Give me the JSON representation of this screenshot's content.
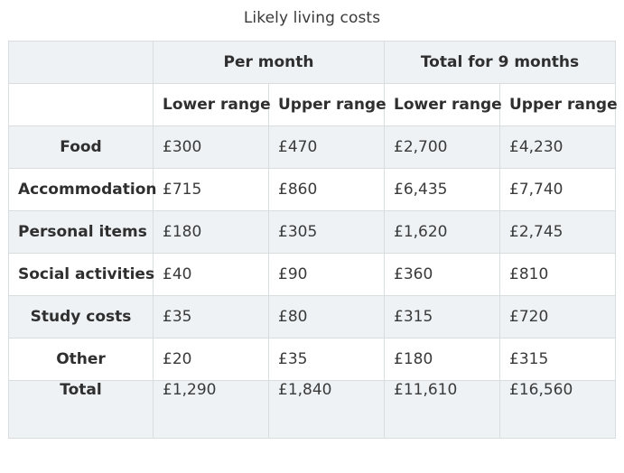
{
  "caption": "Likely living costs",
  "header": {
    "group1": "Per month",
    "group2": "Total for 9 months",
    "lower": "Lower range",
    "upper": "Upper range"
  },
  "rows": [
    {
      "label": "Food",
      "pm_lower": "£300",
      "pm_upper": "£470",
      "t_lower": "£2,700",
      "t_upper": "£4,230"
    },
    {
      "label": "Accommodation",
      "pm_lower": "£715",
      "pm_upper": "£860",
      "t_lower": "£6,435",
      "t_upper": "£7,740"
    },
    {
      "label": "Personal items",
      "pm_lower": "£180",
      "pm_upper": "£305",
      "t_lower": "£1,620",
      "t_upper": "£2,745"
    },
    {
      "label": "Social activities",
      "pm_lower": "£40",
      "pm_upper": "£90",
      "t_lower": "£360",
      "t_upper": "£810"
    },
    {
      "label": "Study costs",
      "pm_lower": "£35",
      "pm_upper": "£80",
      "t_lower": "£315",
      "t_upper": "£720"
    },
    {
      "label": "Other",
      "pm_lower": "£20",
      "pm_upper": "£35",
      "t_lower": "£180",
      "t_upper": "£315"
    },
    {
      "label": "Total",
      "pm_lower": "£1,290",
      "pm_upper": "£1,840",
      "t_lower": "£11,610",
      "t_upper": "£16,560"
    }
  ]
}
